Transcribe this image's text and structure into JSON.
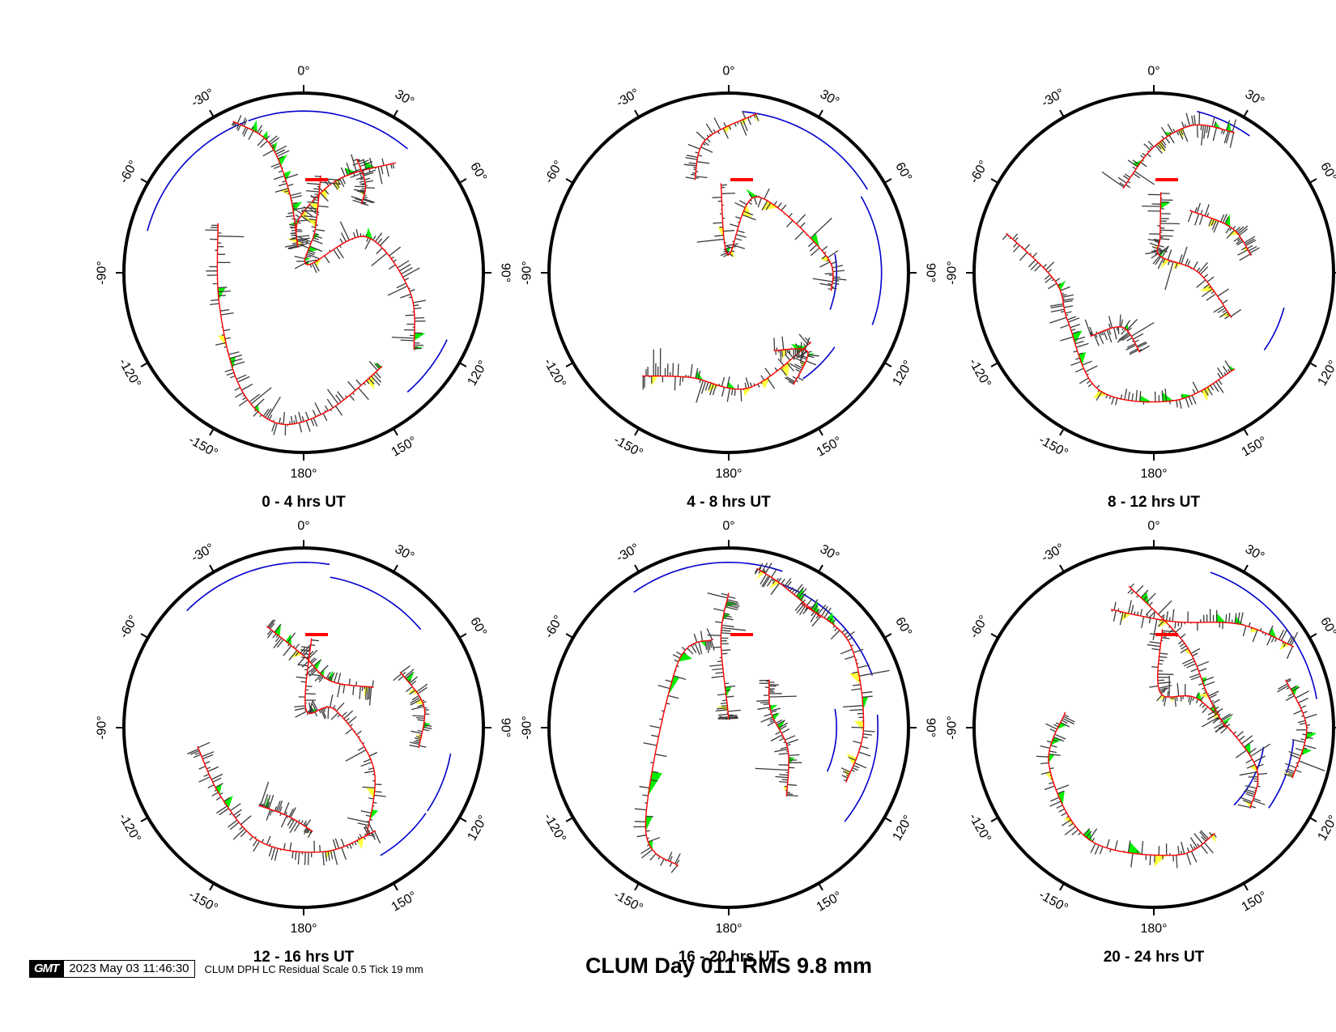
{
  "chart_data": {
    "type": "polar-residual",
    "title": "CLUM Day 011 RMS 9.8 mm",
    "caption": "CLUM DPH LC Residual Scale 0.5 Tick 19 mm",
    "timestamp": "2023 May 03 11:46:30",
    "logo": "GMT",
    "azimuth_ticks": [
      {
        "deg": 0,
        "label": "0°"
      },
      {
        "deg": 30,
        "label": "30°"
      },
      {
        "deg": 60,
        "label": "60°"
      },
      {
        "deg": 90,
        "label": "90°"
      },
      {
        "deg": 120,
        "label": "120°"
      },
      {
        "deg": 150,
        "label": "150°"
      },
      {
        "deg": 180,
        "label": "180°"
      },
      {
        "deg": -150,
        "label": "-150°"
      },
      {
        "deg": -120,
        "label": "-120°"
      },
      {
        "deg": -90,
        "label": "-90°"
      },
      {
        "deg": -60,
        "label": "-60°"
      },
      {
        "deg": -30,
        "label": "-30°"
      }
    ],
    "colors": {
      "track": "#ff0000",
      "residual": "#3a3a3a",
      "positive_fill": "#ffff3c",
      "negative_fill": "#00ee00",
      "low_elevation": "#0000cc",
      "border": "#000000"
    },
    "panels": [
      {
        "title": "0 - 4 hrs UT"
      },
      {
        "title": "4 - 8 hrs UT"
      },
      {
        "title": "8 - 12 hrs UT"
      },
      {
        "title": "12 - 16 hrs UT"
      },
      {
        "title": "16 - 20 hrs UT"
      },
      {
        "title": "20 - 24 hrs UT"
      }
    ]
  }
}
